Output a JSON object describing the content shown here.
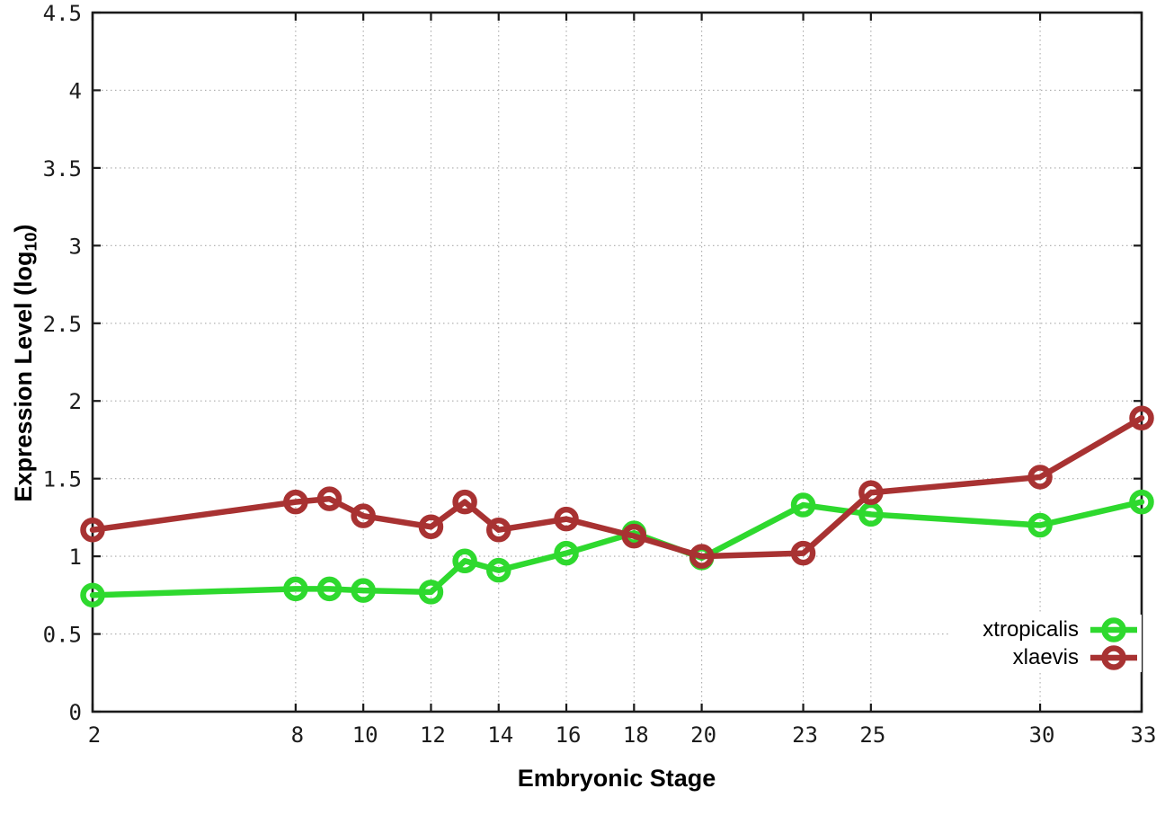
{
  "figure": {
    "background": "#ffffff"
  },
  "chart_data": {
    "type": "line",
    "title": "",
    "xlabel": "Embryonic Stage",
    "ylabel": "Expression Level (log10)",
    "ylabel_parts": {
      "main": "Expression Level (log",
      "sub": "10",
      "end": ")"
    },
    "x": [
      2,
      8,
      9,
      10,
      12,
      13,
      14,
      16,
      18,
      20,
      23,
      25,
      30,
      33
    ],
    "series": [
      {
        "name": "xtropicalis",
        "color": "#2ed92e",
        "values": [
          0.75,
          0.79,
          0.79,
          0.78,
          0.77,
          0.97,
          0.91,
          1.02,
          1.15,
          0.99,
          1.33,
          1.27,
          1.2,
          1.35
        ]
      },
      {
        "name": "xlaevis",
        "color": "#a83232",
        "values": [
          1.17,
          1.35,
          1.37,
          1.26,
          1.19,
          1.35,
          1.17,
          1.24,
          1.13,
          1.0,
          1.02,
          1.41,
          1.51,
          1.89
        ]
      }
    ],
    "xlim": [
      2,
      33
    ],
    "ylim": [
      0,
      4.5
    ],
    "xticks": [
      2,
      8,
      10,
      12,
      14,
      16,
      18,
      20,
      23,
      25,
      30,
      33
    ],
    "xtick_labels": [
      "2",
      "8",
      "10",
      "12",
      "14",
      "16",
      "18",
      "20",
      "23",
      "25",
      "30",
      "33"
    ],
    "yticks": [
      0,
      0.5,
      1,
      1.5,
      2,
      2.5,
      3,
      3.5,
      4,
      4.5
    ],
    "ytick_labels": [
      "0",
      "0.5",
      "1",
      "1.5",
      "2",
      "2.5",
      "3",
      "3.5",
      "4",
      "4.5"
    ],
    "grid": true,
    "grid_style": "dotted",
    "legend_position": "bottom-right-inside",
    "legend_entries": [
      "xtropicalis",
      "xlaevis"
    ],
    "marker": "open-circle",
    "colors": {
      "axis": "#1a1a1a",
      "grid": "#aaaaaa",
      "tick_text": "#1c1c1c"
    }
  }
}
